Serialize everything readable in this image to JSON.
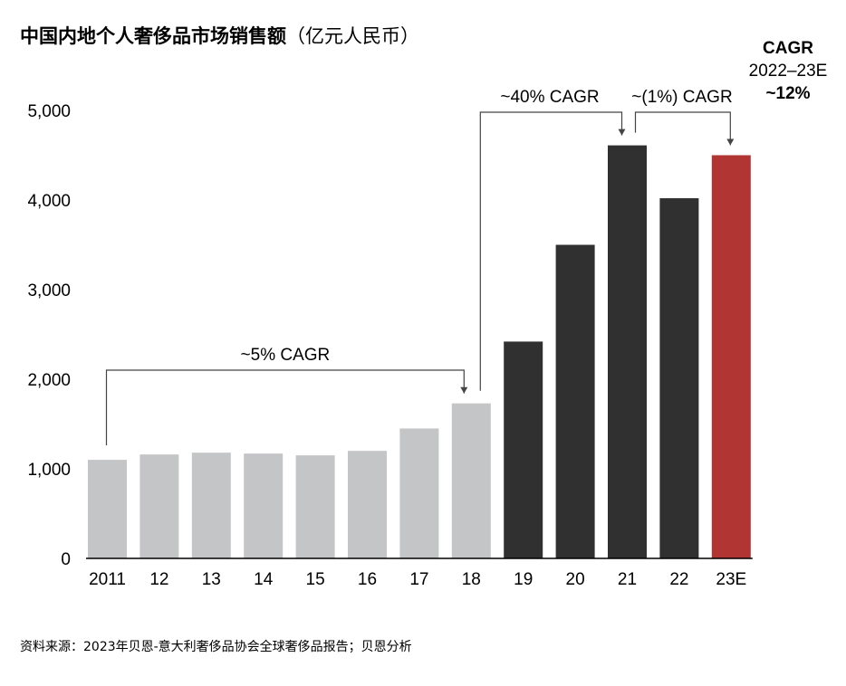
{
  "title": "中国内地个人奢侈品市场销售额",
  "title_unit": "（亿元人民币）",
  "source": "资料来源：2023年贝恩-意大利奢侈品协会全球奢侈品报告；贝恩分析",
  "colors": {
    "light": "#c4c5c7",
    "dark": "#303030",
    "highlight": "#b03533",
    "axis": "#000000",
    "annotation": "#444444"
  },
  "chart_data": {
    "type": "bar",
    "categories": [
      "2011",
      "12",
      "13",
      "14",
      "15",
      "16",
      "17",
      "18",
      "19",
      "20",
      "21",
      "22",
      "23E"
    ],
    "values": [
      1100,
      1160,
      1180,
      1170,
      1150,
      1200,
      1450,
      1730,
      2420,
      3500,
      4610,
      4020,
      4500
    ],
    "bar_colors": [
      "light",
      "light",
      "light",
      "light",
      "light",
      "light",
      "light",
      "light",
      "dark",
      "dark",
      "dark",
      "dark",
      "highlight"
    ],
    "ylim": [
      0,
      5000
    ],
    "yticks": [
      0,
      1000,
      2000,
      3000,
      4000,
      5000
    ],
    "ytick_labels": [
      "0",
      "1,000",
      "2,000",
      "3,000",
      "4,000",
      "5,000"
    ],
    "xlabel": "",
    "ylabel": "",
    "grid": false,
    "annotations": [
      {
        "label": "~5% CAGR",
        "from": "2011",
        "to": "18"
      },
      {
        "label": "~40% CAGR",
        "from": "18",
        "to": "21"
      },
      {
        "label": "~(1%) CAGR",
        "from": "21",
        "to": "23E"
      }
    ],
    "cagr_box": {
      "heading": "CAGR",
      "period": "2022–23E",
      "value": "~12%"
    }
  }
}
